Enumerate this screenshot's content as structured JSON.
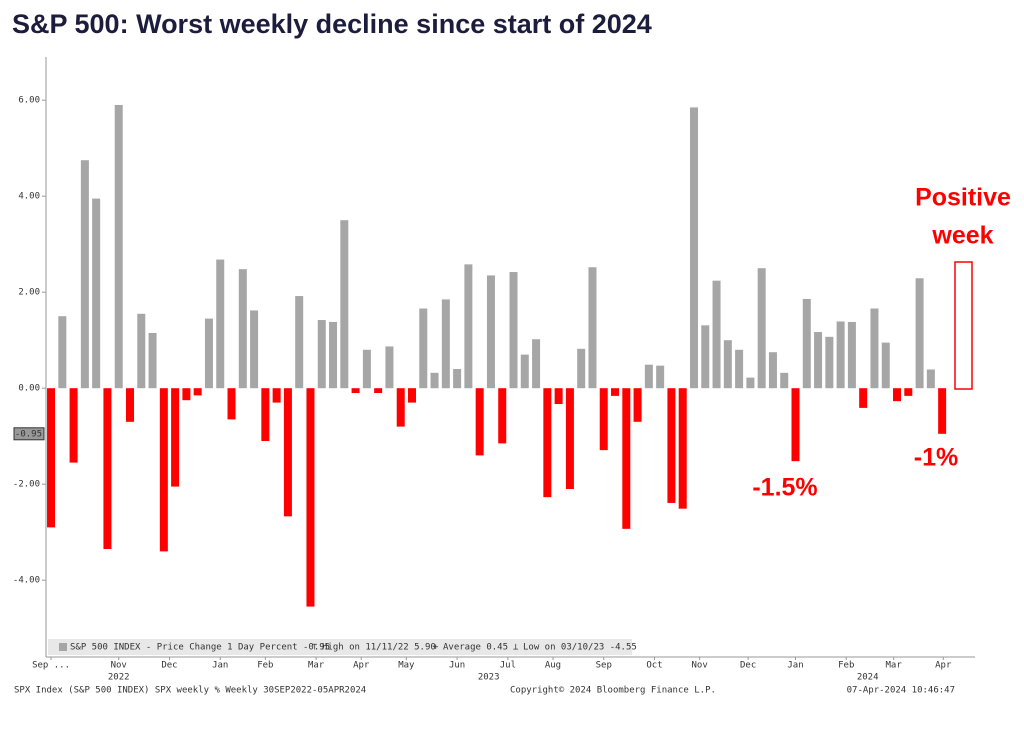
{
  "chart_data": {
    "type": "bar",
    "title": "S&P 500: Worst weekly decline since start of 2024",
    "values": [
      -2.9,
      1.5,
      -1.55,
      4.75,
      3.95,
      -3.35,
      5.9,
      -0.7,
      1.55,
      1.15,
      -3.4,
      -2.05,
      -0.25,
      -0.15,
      1.45,
      2.68,
      -0.65,
      2.48,
      1.62,
      -1.1,
      -0.3,
      -2.67,
      1.92,
      -4.55,
      1.42,
      1.38,
      3.5,
      -0.1,
      0.8,
      -0.1,
      0.87,
      -0.8,
      -0.3,
      1.66,
      0.32,
      1.85,
      0.4,
      2.58,
      -1.4,
      2.35,
      -1.15,
      2.42,
      0.7,
      1.02,
      -2.27,
      -0.33,
      -2.1,
      0.82,
      2.52,
      -1.29,
      -0.16,
      -2.93,
      -0.7,
      0.49,
      0.47,
      -2.39,
      -2.51,
      5.85,
      1.31,
      2.24,
      1.0,
      0.8,
      0.22,
      2.5,
      0.75,
      0.32,
      -1.52,
      1.86,
      1.17,
      1.07,
      1.39,
      1.38,
      -0.41,
      1.66,
      0.95,
      -0.27,
      -0.16,
      2.29,
      0.39,
      -0.95
    ],
    "color_positive": "#a6a6a6",
    "color_negative": "#ff0000",
    "ylim": [
      -5.6,
      6.9
    ],
    "yticks": [
      {
        "value": -4,
        "label": "-4.00"
      },
      {
        "value": -2,
        "label": "-2.00"
      },
      {
        "value": 0,
        "label": "0.00"
      },
      {
        "value": 2,
        "label": "2.00"
      },
      {
        "value": 4,
        "label": "4.00"
      },
      {
        "value": 6,
        "label": "6.00"
      }
    ],
    "xlim": [
      -0.5,
      81
    ],
    "xticks": [
      {
        "value": 0,
        "label": "Sep ..."
      },
      {
        "value": 6,
        "label": "Nov"
      },
      {
        "value": 10.5,
        "label": "Dec"
      },
      {
        "value": 15,
        "label": "Jan"
      },
      {
        "value": 19,
        "label": "Feb"
      },
      {
        "value": 23.5,
        "label": "Mar"
      },
      {
        "value": 27.5,
        "label": "Apr"
      },
      {
        "value": 31.5,
        "label": "May"
      },
      {
        "value": 36,
        "label": "Jun"
      },
      {
        "value": 40.5,
        "label": "Jul"
      },
      {
        "value": 44.5,
        "label": "Aug"
      },
      {
        "value": 49,
        "label": "Sep"
      },
      {
        "value": 53.5,
        "label": "Oct"
      },
      {
        "value": 57.5,
        "label": "Nov"
      },
      {
        "value": 61.8,
        "label": "Dec"
      },
      {
        "value": 66,
        "label": "Jan"
      },
      {
        "value": 70.5,
        "label": "Feb"
      },
      {
        "value": 74.7,
        "label": "Mar"
      },
      {
        "value": 79.1,
        "label": "Apr"
      }
    ],
    "year_labels": [
      {
        "value": 6,
        "label": "2022"
      },
      {
        "value": 38.8,
        "label": "2023"
      },
      {
        "value": 72.4,
        "label": "2024"
      }
    ],
    "last_value_label": {
      "value": -0.95,
      "label": "-0.95"
    },
    "legend": [
      "S&P 500 INDEX - Price Change 1 Day Percent -0.95",
      "High on 11/11/22 5.90",
      "Average 0.45",
      "Low on 03/10/23 -4.55"
    ],
    "annotations": [
      "Positive",
      "week",
      "-1.5%",
      "-1%"
    ],
    "footer": [
      "SPX Index (S&P 500 INDEX) SPX weekly % Weekly 30SEP2022-05APR2024",
      "Copyright© 2024 Bloomberg Finance L.P.",
      "07-Apr-2024 10:46:47"
    ]
  }
}
